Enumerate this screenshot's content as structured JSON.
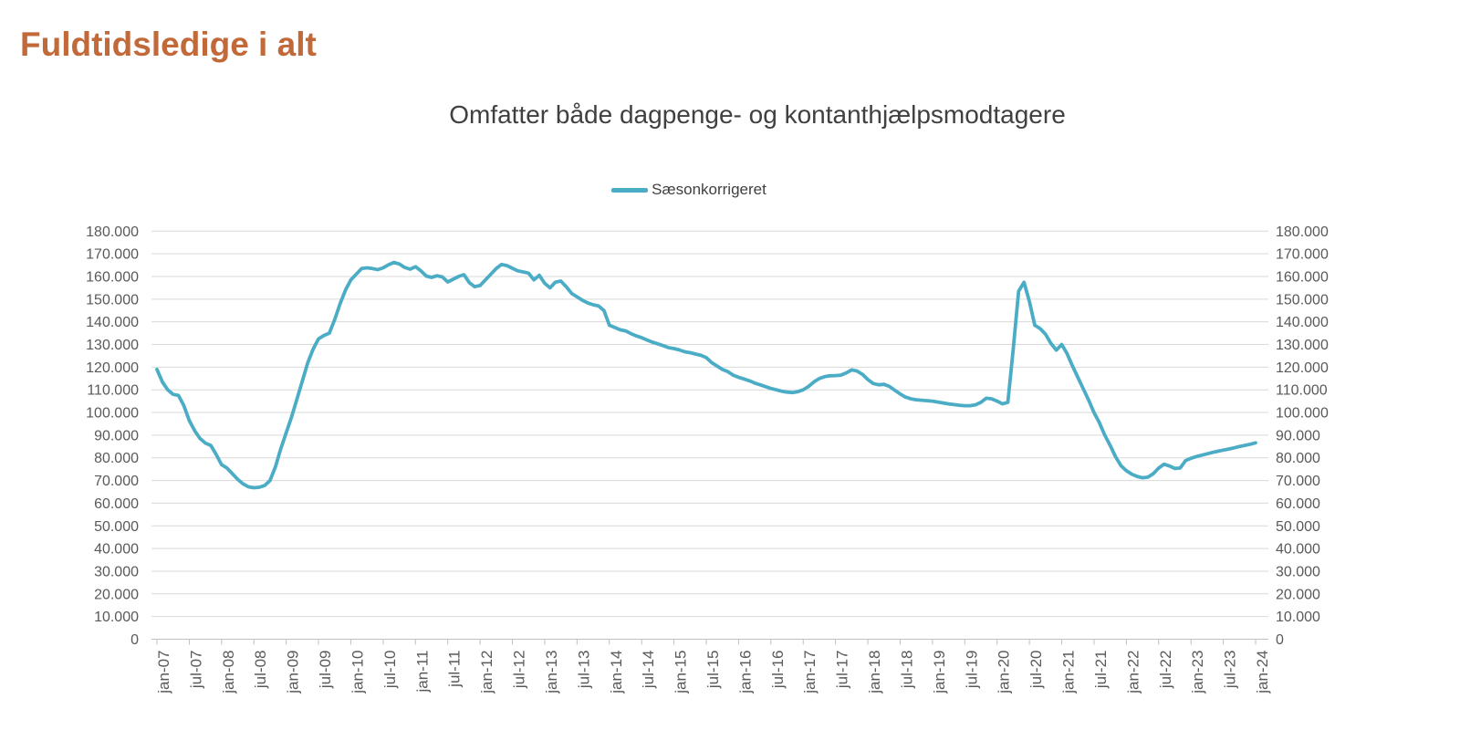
{
  "page": {
    "title": "Fuldtidsledige i alt"
  },
  "chart": {
    "subtitle": "Omfatter både dagpenge- og kontanthjælpsmodtagere",
    "legend": {
      "label": "Sæsonkorrigeret"
    }
  },
  "colors": {
    "title_text": "#C2693A",
    "subtitle_text": "#404040",
    "legend_text": "#404040",
    "axis_text": "#595959",
    "gridline": "#D9D9D9",
    "axis_line": "#BFBFBF",
    "series_line": "#4BACC6"
  },
  "chart_data": {
    "type": "line",
    "title": "Omfatter både dagpenge- og kontanthjælpsmodtagere",
    "legend_entries": [
      "Sæsonkorrigeret"
    ],
    "legend_position": "top-center",
    "grid": "horizontal",
    "dual_y_axis": true,
    "ylim": [
      0,
      180000
    ],
    "y_tick_interval": 10000,
    "y_tick_labels": [
      "0",
      "10.000",
      "20.000",
      "30.000",
      "40.000",
      "50.000",
      "60.000",
      "70.000",
      "80.000",
      "90.000",
      "100.000",
      "110.000",
      "120.000",
      "130.000",
      "140.000",
      "150.000",
      "160.000",
      "170.000",
      "180.000"
    ],
    "x_frequency": "monthly",
    "x_range": [
      "jan-07",
      "jan-24"
    ],
    "x_tick_every_months": 6,
    "x_tick_labels": [
      "jan-07",
      "jul-07",
      "jan-08",
      "jul-08",
      "jan-09",
      "jul-09",
      "jan-10",
      "jul-10",
      "jan-11",
      "jul-11",
      "jan-12",
      "jul-12",
      "jan-13",
      "jul-13",
      "jan-14",
      "jul-14",
      "jan-15",
      "jul-15",
      "jan-16",
      "jul-16",
      "jan-17",
      "jul-17",
      "jan-18",
      "jul-18",
      "jan-19",
      "jul-19",
      "jan-20",
      "jul-20",
      "jan-21",
      "jul-21",
      "jan-22",
      "jul-22",
      "jan-23",
      "jul-23",
      "jan-24"
    ],
    "series": [
      {
        "name": "Sæsonkorrigeret",
        "color": "#4BACC6",
        "start": "jan-07",
        "frequency": "monthly",
        "values": [
          119000,
          113500,
          110000,
          108000,
          107500,
          103000,
          96500,
          92000,
          88500,
          86500,
          85500,
          81500,
          77000,
          75500,
          73000,
          70500,
          68500,
          67200,
          66800,
          67000,
          67800,
          70000,
          76000,
          84000,
          91000,
          98000,
          106000,
          114000,
          122000,
          128000,
          132500,
          134000,
          135000,
          141000,
          148000,
          154000,
          158500,
          161000,
          163500,
          163800,
          163500,
          163000,
          163800,
          165200,
          166200,
          165500,
          164000,
          163200,
          164300,
          162500,
          160200,
          159600,
          160300,
          159800,
          157600,
          158800,
          160000,
          160800,
          157300,
          155500,
          156000,
          158500,
          161000,
          163500,
          165300,
          164800,
          163600,
          162500,
          162000,
          161500,
          158500,
          160500,
          157000,
          155000,
          157500,
          158000,
          155500,
          152500,
          151000,
          149500,
          148300,
          147500,
          147000,
          145000,
          138500,
          137500,
          136500,
          136000,
          134800,
          133800,
          133000,
          132000,
          131000,
          130300,
          129500,
          128600,
          128200,
          127600,
          126800,
          126400,
          125800,
          125200,
          124200,
          122000,
          120500,
          119000,
          118000,
          116500,
          115500,
          114800,
          114000,
          113000,
          112200,
          111400,
          110600,
          110000,
          109400,
          109000,
          108800,
          109200,
          110000,
          111500,
          113500,
          115000,
          115800,
          116200,
          116300,
          116500,
          117500,
          118800,
          118300,
          116800,
          114500,
          112800,
          112200,
          112400,
          111500,
          109800,
          108200,
          106800,
          106000,
          105600,
          105400,
          105200,
          105000,
          104600,
          104200,
          103800,
          103500,
          103200,
          103000,
          103000,
          103400,
          104500,
          106300,
          106000,
          105000,
          103800,
          104500,
          128000,
          153500,
          157400,
          149000,
          138500,
          137000,
          134500,
          130500,
          127500,
          130000,
          126000,
          120500,
          115500,
          110500,
          105500,
          100000,
          95500,
          90000,
          85500,
          80500,
          76500,
          74300,
          72800,
          71800,
          71200,
          71500,
          73000,
          75500,
          77200,
          76400,
          75300,
          75500,
          78800,
          79800,
          80600,
          81200,
          81800,
          82400,
          82900,
          83400,
          83900,
          84400,
          85000,
          85500,
          86000,
          86600
        ]
      }
    ]
  }
}
